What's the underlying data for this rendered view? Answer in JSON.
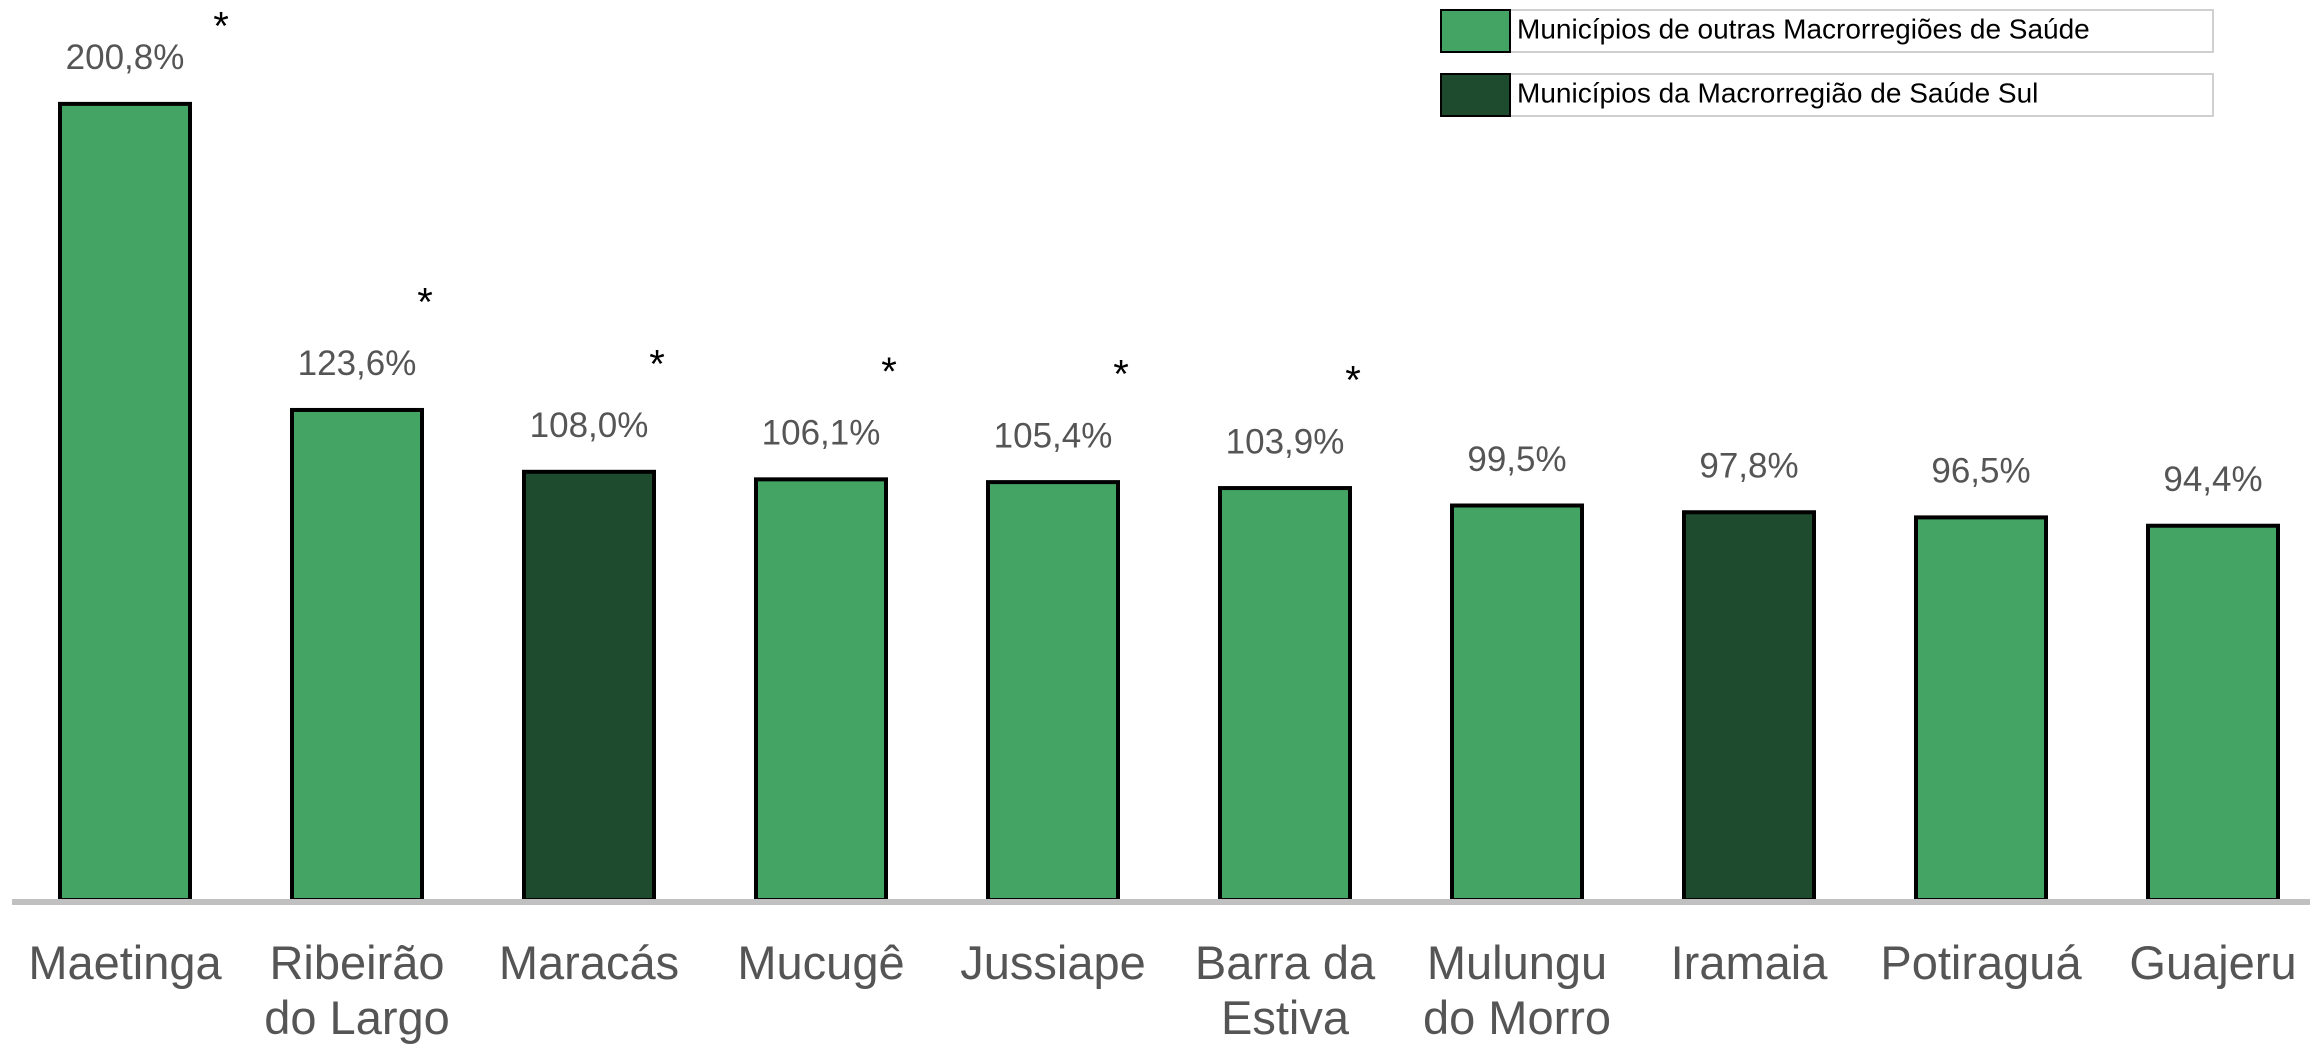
{
  "chart_data": {
    "type": "bar",
    "categories": [
      "Maetinga",
      "Ribeirão do Largo",
      "Maracás",
      "Mucugê",
      "Jussiape",
      "Barra da Estiva",
      "Mulungu do Morro",
      "Iramaia",
      "Potiraguá",
      "Guajeru"
    ],
    "series": [
      {
        "name": "Municípios de outras Macrorregiões de Saúde",
        "color": "#43a463",
        "values": [
          200.8,
          123.6,
          null,
          106.1,
          105.4,
          103.9,
          99.5,
          null,
          96.5,
          94.4
        ],
        "value_labels": [
          "200,8%",
          "123,6%",
          null,
          "106,1%",
          "105,4%",
          "103,9%",
          "99,5%",
          null,
          "96,5%",
          "94,4%"
        ]
      },
      {
        "name": "Municípios da Macrorregião de Saúde Sul",
        "color": "#1e4b2e",
        "values": [
          null,
          null,
          108.0,
          null,
          null,
          null,
          null,
          97.8,
          null,
          null
        ],
        "value_labels": [
          null,
          null,
          "108,0%",
          null,
          null,
          null,
          null,
          "97,8%",
          null,
          null
        ]
      }
    ],
    "annotations": [
      "*",
      "*",
      "*",
      "*",
      "*",
      "*",
      null,
      null,
      null,
      null
    ],
    "ylim": [
      0,
      227
    ]
  }
}
